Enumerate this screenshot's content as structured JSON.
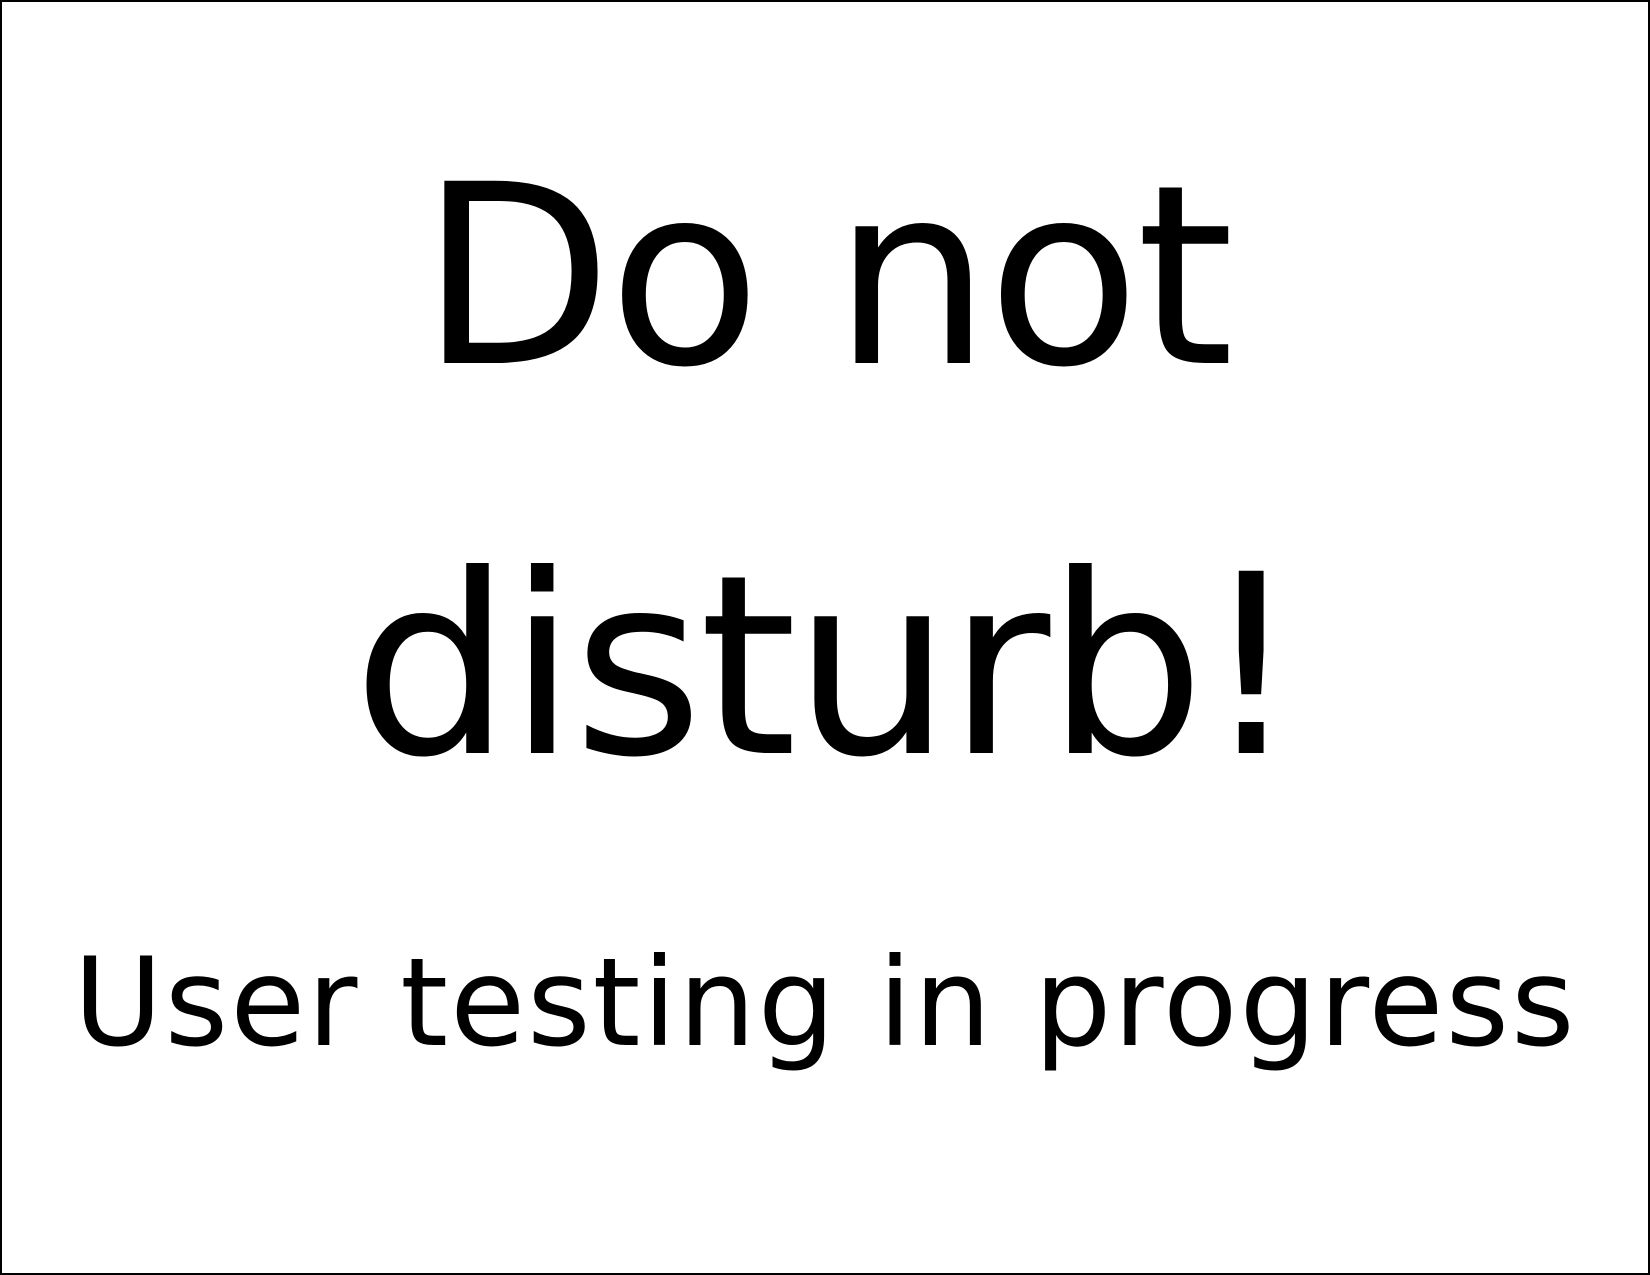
{
  "sign": {
    "headline_line1": "Do not",
    "headline_line2": "disturb!",
    "subline": "User testing in progress"
  },
  "colors": {
    "background": "#ffffff",
    "text": "#000000",
    "border": "#000000"
  }
}
